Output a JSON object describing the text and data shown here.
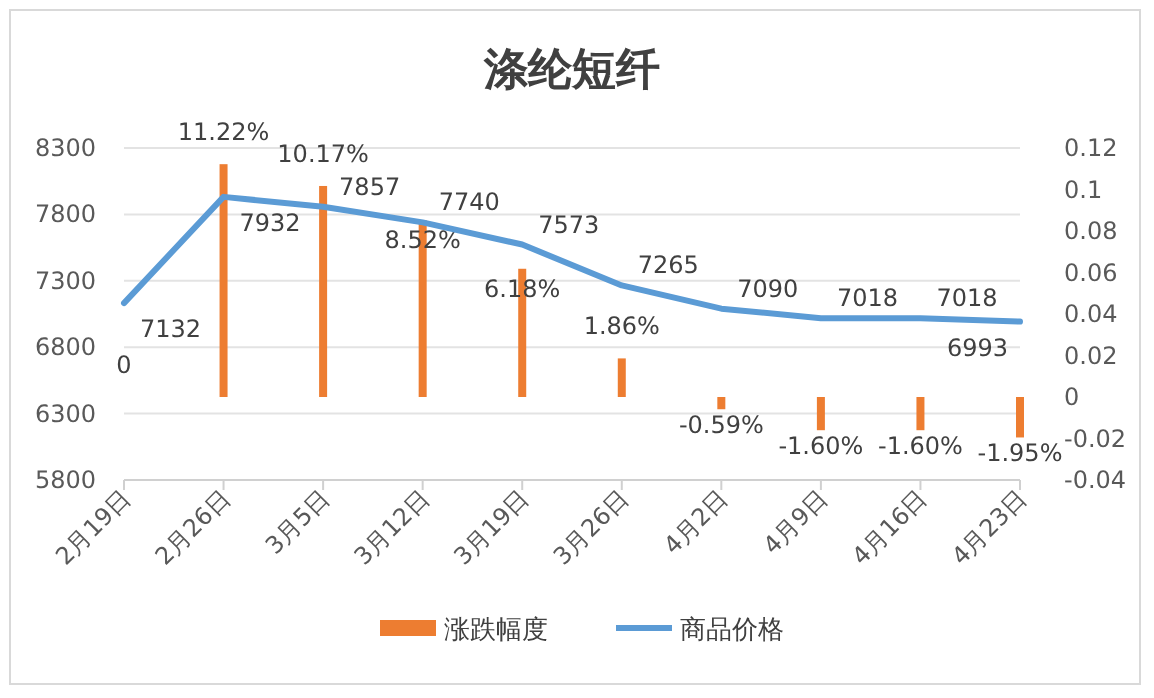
{
  "chart_data": {
    "type": "bar",
    "title": "涤纶短纤",
    "categories": [
      "2月19日",
      "2月26日",
      "3月5日",
      "3月12日",
      "3月19日",
      "3月26日",
      "4月2日",
      "4月9日",
      "4月16日",
      "4月23日"
    ],
    "series": [
      {
        "name": "涨跌幅度",
        "axis": "y2",
        "color": "#ed7d31",
        "values": [
          0,
          0.1122,
          0.1017,
          0.0852,
          0.0618,
          0.0186,
          -0.0059,
          -0.016,
          -0.016,
          -0.0195
        ],
        "value_labels": [
          "0",
          "11.22%",
          "10.17%",
          "8.52%",
          "6.18%",
          "1.86%",
          "-0.59%",
          "-1.60%",
          "-1.60%",
          "-1.95%"
        ]
      },
      {
        "name": "商品价格",
        "type": "line",
        "color": "#5b9bd5",
        "values": [
          7132,
          7932,
          7857,
          7740,
          7573,
          7265,
          7090,
          7018,
          7018,
          6993
        ],
        "value_labels": [
          "7132",
          "7932",
          "7857",
          "7740",
          "7573",
          "7265",
          "7090",
          "7018",
          "7018",
          "6993"
        ]
      }
    ],
    "ylim": [
      5800,
      8300
    ],
    "yticks": [
      5800,
      6300,
      6800,
      7300,
      7800,
      8300
    ],
    "y2lim": [
      -0.04,
      0.12
    ],
    "y2ticks": [
      -0.04,
      -0.02,
      0,
      0.02,
      0.04,
      0.06,
      0.08,
      0.1,
      0.12
    ],
    "grid": "y",
    "legend": "bottom",
    "marker": "none"
  }
}
